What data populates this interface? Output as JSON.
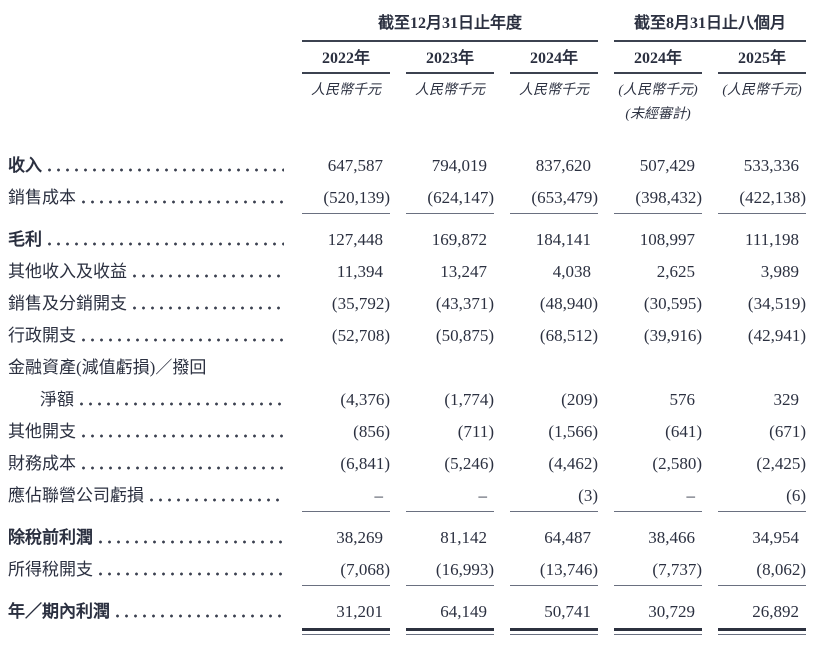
{
  "colors": {
    "text": "#2b3040",
    "header_rule": "#3c4250",
    "row_rule": "#6a7080",
    "total_rule": "#2c313f",
    "background": "#ffffff"
  },
  "header": {
    "group1_title": "截至12月31日止年度",
    "group2_title": "截至8月31日止八個月",
    "years": [
      "2022年",
      "2023年",
      "2024年",
      "2024年",
      "2025年"
    ],
    "units": [
      "人民幣千元",
      "人民幣千元",
      "人民幣千元",
      "(人民幣千元)",
      "(人民幣千元)"
    ],
    "unaudited_note": "(未經審計)"
  },
  "rows": [
    {
      "label": "收入",
      "values": [
        "647,587",
        "794,019",
        "837,620",
        "507,429",
        "533,336"
      ]
    },
    {
      "label": "銷售成本",
      "values": [
        "(520,139)",
        "(624,147)",
        "(653,479)",
        "(398,432)",
        "(422,138)"
      ]
    },
    {
      "label": "毛利",
      "values": [
        "127,448",
        "169,872",
        "184,141",
        "108,997",
        "111,198"
      ]
    },
    {
      "label": "其他收入及收益",
      "values": [
        "11,394",
        "13,247",
        "4,038",
        "2,625",
        "3,989"
      ]
    },
    {
      "label": "銷售及分銷開支",
      "values": [
        "(35,792)",
        "(43,371)",
        "(48,940)",
        "(30,595)",
        "(34,519)"
      ]
    },
    {
      "label": "行政開支",
      "values": [
        "(52,708)",
        "(50,875)",
        "(68,512)",
        "(39,916)",
        "(42,941)"
      ]
    },
    {
      "label": "金融資產(減值虧損)／撥回",
      "values": []
    },
    {
      "label": "淨額",
      "values": [
        "(4,376)",
        "(1,774)",
        "(209)",
        "576",
        "329"
      ]
    },
    {
      "label": "其他開支",
      "values": [
        "(856)",
        "(711)",
        "(1,566)",
        "(641)",
        "(671)"
      ]
    },
    {
      "label": "財務成本",
      "values": [
        "(6,841)",
        "(5,246)",
        "(4,462)",
        "(2,580)",
        "(2,425)"
      ]
    },
    {
      "label": "應佔聯營公司虧損",
      "values": [
        "–",
        "–",
        "(3)",
        "–",
        "(6)"
      ]
    },
    {
      "label": "除稅前利潤",
      "values": [
        "38,269",
        "81,142",
        "64,487",
        "38,466",
        "34,954"
      ]
    },
    {
      "label": "所得稅開支",
      "values": [
        "(7,068)",
        "(16,993)",
        "(13,746)",
        "(7,737)",
        "(8,062)"
      ]
    },
    {
      "label": "年／期內利潤",
      "values": [
        "31,201",
        "64,149",
        "50,741",
        "30,729",
        "26,892"
      ]
    }
  ]
}
